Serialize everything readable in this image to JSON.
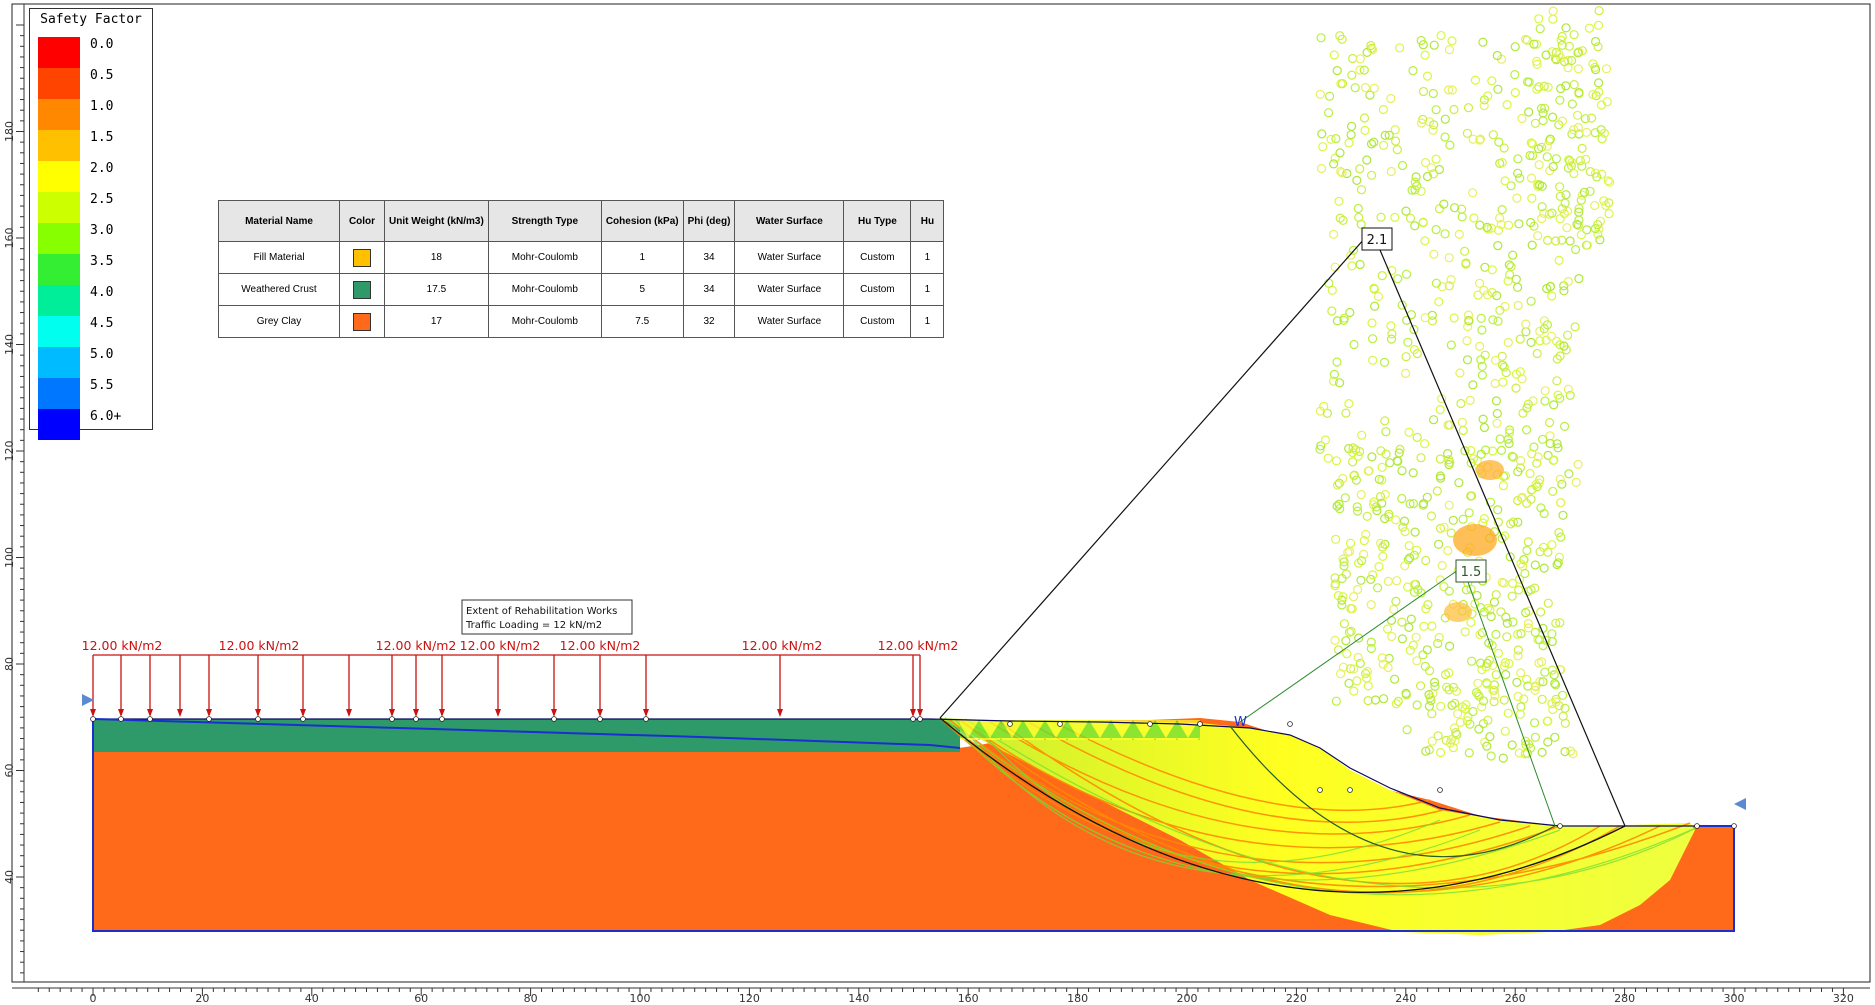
{
  "legend": {
    "title": "Safety Factor",
    "labels": [
      "0.0",
      "0.5",
      "1.0",
      "1.5",
      "2.0",
      "2.5",
      "3.0",
      "3.5",
      "4.0",
      "4.5",
      "5.0",
      "5.5",
      "6.0+"
    ],
    "colors": [
      "#ff0000",
      "#ff4400",
      "#ff8800",
      "#ffc000",
      "#ffff00",
      "#ccff00",
      "#88ff00",
      "#33ee33",
      "#00ee99",
      "#00ffee",
      "#00bbff",
      "#0077ff",
      "#0000ff"
    ]
  },
  "materials_table": {
    "headers": [
      "Material Name",
      "Color",
      "Unit Weight (kN/m3)",
      "Strength Type",
      "Cohesion (kPa)",
      "Phi (deg)",
      "Water Surface",
      "Hu Type",
      "Hu"
    ],
    "rows": [
      {
        "name": "Fill Material",
        "color": "#ffc000",
        "unit_weight": "18",
        "strength_type": "Mohr-Coulomb",
        "cohesion": "1",
        "phi": "34",
        "water_surface": "Water Surface",
        "hu_type": "Custom",
        "hu": "1"
      },
      {
        "name": "Weathered Crust",
        "color": "#2e9a6a",
        "unit_weight": "17.5",
        "strength_type": "Mohr-Coulomb",
        "cohesion": "5",
        "phi": "34",
        "water_surface": "Water Surface",
        "hu_type": "Custom",
        "hu": "1"
      },
      {
        "name": "Grey Clay",
        "color": "#ff6a1a",
        "unit_weight": "17",
        "strength_type": "Mohr-Coulomb",
        "cohesion": "7.5",
        "phi": "32",
        "water_surface": "Water Surface",
        "hu_type": "Custom",
        "hu": "1"
      }
    ]
  },
  "axes": {
    "x_ticks": [
      "0",
      "20",
      "40",
      "60",
      "80",
      "100",
      "120",
      "140",
      "160",
      "180",
      "200",
      "220",
      "240",
      "260",
      "280",
      "300",
      "320"
    ],
    "y_ticks": [
      "40",
      "60",
      "80",
      "100",
      "120",
      "140",
      "160",
      "180"
    ]
  },
  "loads": {
    "labels": [
      "12.00 kN/m2",
      "12.00 kN/m2",
      "12.00 kN/m2",
      "12.00 kN/m2",
      "12.00 kN/m2",
      "12.00 kN/m2",
      "12.00 kN/m2"
    ],
    "color": "#cc1111"
  },
  "annotation": {
    "line1": "Extent of Rehabilitation Works",
    "line2": "Traffic Loading = 12 kN/m2"
  },
  "slip_labels": {
    "global": "2.1",
    "local": "1.5"
  },
  "water_marker": "W"
}
